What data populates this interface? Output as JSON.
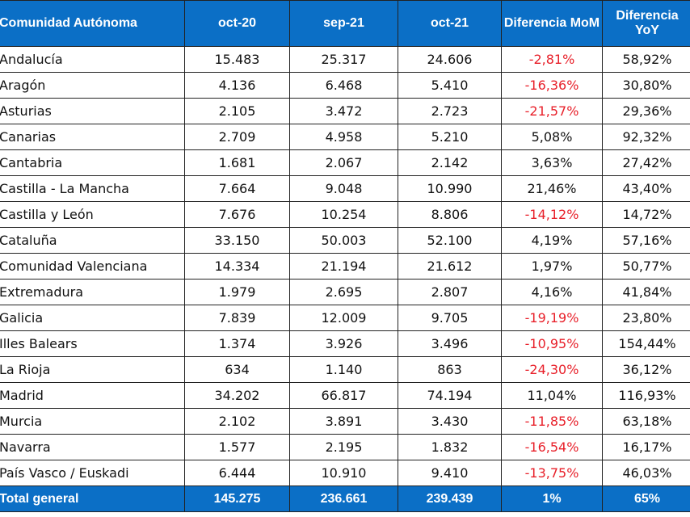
{
  "colors": {
    "header_bg": "#0b6fc6",
    "negative": "#e8202a"
  },
  "headers": [
    "Comunidad Autónoma",
    "oct-20",
    "sep-21",
    "oct-21",
    "Diferencia MoM",
    "Diferencia YoY"
  ],
  "rows": [
    [
      "Andalucía",
      "15.483",
      "25.317",
      "24.606",
      "-2,81%",
      "58,92%"
    ],
    [
      "Aragón",
      "4.136",
      "6.468",
      "5.410",
      "-16,36%",
      "30,80%"
    ],
    [
      "Asturias",
      "2.105",
      "3.472",
      "2.723",
      "-21,57%",
      "29,36%"
    ],
    [
      "Canarias",
      "2.709",
      "4.958",
      "5.210",
      "5,08%",
      "92,32%"
    ],
    [
      "Cantabria",
      "1.681",
      "2.067",
      "2.142",
      "3,63%",
      "27,42%"
    ],
    [
      "Castilla - La Mancha",
      "7.664",
      "9.048",
      "10.990",
      "21,46%",
      "43,40%"
    ],
    [
      "Castilla y León",
      "7.676",
      "10.254",
      "8.806",
      "-14,12%",
      "14,72%"
    ],
    [
      "Cataluña",
      "33.150",
      "50.003",
      "52.100",
      "4,19%",
      "57,16%"
    ],
    [
      "Comunidad Valenciana",
      "14.334",
      "21.194",
      "21.612",
      "1,97%",
      "50,77%"
    ],
    [
      "Extremadura",
      "1.979",
      "2.695",
      "2.807",
      "4,16%",
      "41,84%"
    ],
    [
      "Galicia",
      "7.839",
      "12.009",
      "9.705",
      "-19,19%",
      "23,80%"
    ],
    [
      "Illes Balears",
      "1.374",
      "3.926",
      "3.496",
      "-10,95%",
      "154,44%"
    ],
    [
      "La Rioja",
      "634",
      "1.140",
      "863",
      "-24,30%",
      "36,12%"
    ],
    [
      "Madrid",
      "34.202",
      "66.817",
      "74.194",
      "11,04%",
      "116,93%"
    ],
    [
      "Murcia",
      "2.102",
      "3.891",
      "3.430",
      "-11,85%",
      "63,18%"
    ],
    [
      "Navarra",
      "1.577",
      "2.195",
      "1.832",
      "-16,54%",
      "16,17%"
    ],
    [
      "País Vasco / Euskadi",
      "6.444",
      "10.910",
      "9.410",
      "-13,75%",
      "46,03%"
    ]
  ],
  "total": [
    "Total general",
    "145.275",
    "236.661",
    "239.439",
    "1%",
    "65%"
  ]
}
